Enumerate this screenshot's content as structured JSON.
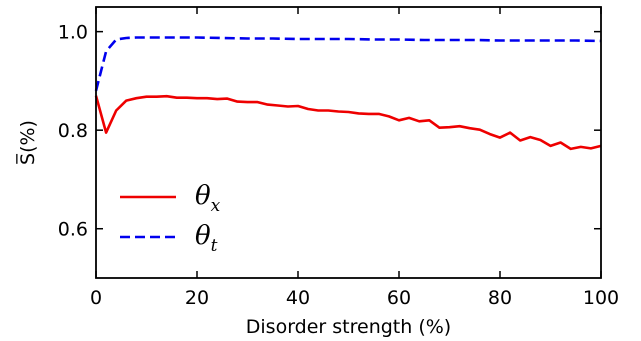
{
  "chart_data": {
    "type": "line",
    "xlabel": "Disorder strength (%)",
    "ylabel": "S̅(%)",
    "xlim": [
      0,
      100
    ],
    "ylim": [
      0.5,
      1.05
    ],
    "xticks": [
      0,
      20,
      40,
      60,
      80,
      100
    ],
    "yticks": [
      0.6,
      0.8,
      1.0
    ],
    "xtick_labels": [
      "0",
      "20",
      "40",
      "60",
      "80",
      "100"
    ],
    "ytick_labels": [
      "0.6",
      "0.8",
      "1.0"
    ],
    "grid": false,
    "legend_position": "lower-left",
    "series": [
      {
        "name": "θx",
        "legend_main": "θ",
        "legend_sub": "x",
        "color": "#ee0000",
        "style": "solid",
        "x": [
          0,
          2,
          4,
          6,
          8,
          10,
          12,
          14,
          16,
          18,
          20,
          22,
          24,
          26,
          28,
          30,
          32,
          34,
          36,
          38,
          40,
          42,
          44,
          46,
          48,
          50,
          52,
          54,
          56,
          58,
          60,
          62,
          64,
          66,
          68,
          70,
          72,
          74,
          76,
          78,
          80,
          82,
          84,
          86,
          88,
          90,
          92,
          94,
          96,
          98,
          100
        ],
        "y": [
          0.87,
          0.795,
          0.84,
          0.86,
          0.865,
          0.868,
          0.868,
          0.869,
          0.866,
          0.866,
          0.865,
          0.865,
          0.863,
          0.864,
          0.858,
          0.857,
          0.857,
          0.852,
          0.85,
          0.848,
          0.849,
          0.843,
          0.84,
          0.84,
          0.838,
          0.837,
          0.834,
          0.833,
          0.833,
          0.828,
          0.82,
          0.825,
          0.818,
          0.82,
          0.805,
          0.806,
          0.808,
          0.804,
          0.801,
          0.792,
          0.785,
          0.795,
          0.779,
          0.786,
          0.78,
          0.768,
          0.775,
          0.762,
          0.766,
          0.763,
          0.768
        ]
      },
      {
        "name": "θt",
        "legend_main": "θ",
        "legend_sub": "t",
        "color": "#0000ee",
        "style": "dashed",
        "x": [
          0,
          2,
          4,
          6,
          8,
          10,
          15,
          20,
          25,
          30,
          35,
          40,
          45,
          50,
          55,
          60,
          65,
          70,
          75,
          80,
          85,
          90,
          95,
          100
        ],
        "y": [
          0.88,
          0.96,
          0.984,
          0.987,
          0.988,
          0.988,
          0.988,
          0.988,
          0.987,
          0.986,
          0.986,
          0.985,
          0.985,
          0.985,
          0.984,
          0.984,
          0.983,
          0.983,
          0.983,
          0.982,
          0.982,
          0.982,
          0.982,
          0.981
        ]
      }
    ]
  }
}
